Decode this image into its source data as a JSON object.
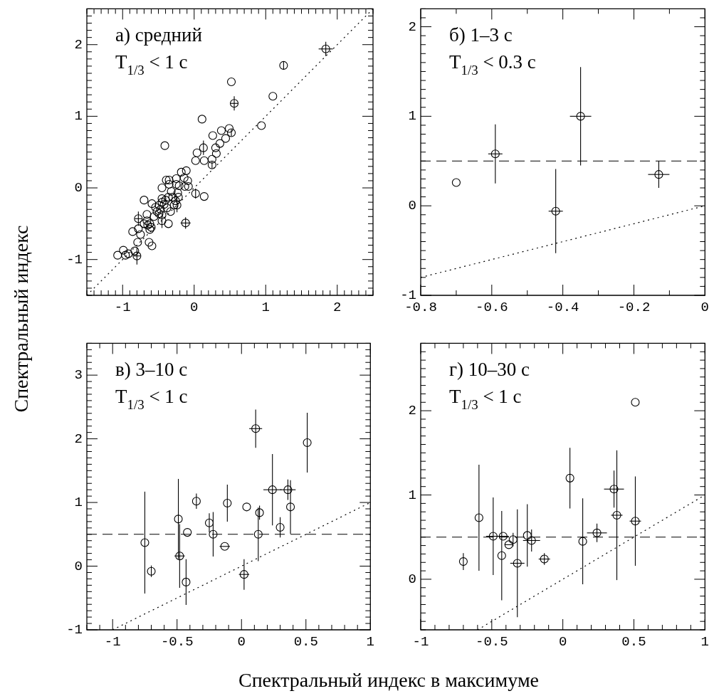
{
  "chart_data": [
    {
      "type": "scatter",
      "ylabel": "Спектральный индекс",
      "annotations": [
        "а) средний",
        "T$_{1/3}$ < 1 с"
      ],
      "xlim": [
        -1.5,
        2.5
      ],
      "ylim": [
        -1.5,
        2.5
      ],
      "marker": "circle",
      "xticks": [
        {
          "value": -1.5,
          "label": null
        },
        {
          "value": -1.4,
          "label": null
        },
        {
          "value": -1.3,
          "label": null
        },
        {
          "value": -1.2,
          "label": null
        },
        {
          "value": -1.1,
          "label": null
        },
        -1,
        {
          "value": -0.9,
          "label": null
        },
        {
          "value": -0.8,
          "label": null
        },
        {
          "value": -0.7,
          "label": null
        },
        {
          "value": -0.6,
          "label": null
        },
        {
          "value": -0.5,
          "label": null
        },
        {
          "value": -0.4,
          "label": null
        },
        {
          "value": -0.3,
          "label": null
        },
        {
          "value": -0.2,
          "label": null
        },
        {
          "value": -0.1,
          "label": null
        },
        0,
        {
          "value": 0.1,
          "label": null
        },
        {
          "value": 0.2,
          "label": null
        },
        {
          "value": 0.3,
          "label": null
        },
        {
          "value": 0.4,
          "label": null
        },
        {
          "value": 0.5,
          "label": null
        },
        {
          "value": 0.6,
          "label": null
        },
        {
          "value": 0.7,
          "label": null
        },
        {
          "value": 0.8,
          "label": null
        },
        {
          "value": 0.9,
          "label": null
        },
        1,
        {
          "value": 1.1,
          "label": null
        },
        {
          "value": 1.2,
          "label": null
        },
        {
          "value": 1.3,
          "label": null
        },
        {
          "value": 1.4,
          "label": null
        },
        {
          "value": 1.5,
          "label": null
        },
        {
          "value": 1.6,
          "label": null
        },
        {
          "value": 1.7,
          "label": null
        },
        {
          "value": 1.8,
          "label": null
        },
        {
          "value": 1.9,
          "label": null
        },
        2,
        {
          "value": 2.1,
          "label": null
        },
        {
          "value": 2.2,
          "label": null
        },
        {
          "value": 2.3,
          "label": null
        },
        {
          "value": 2.4,
          "label": null
        },
        {
          "value": 2.5,
          "label": null
        }
      ],
      "yticks": [
        {
          "value": -1.5,
          "label": null
        },
        {
          "value": -1.4,
          "label": null
        },
        {
          "value": -1.3,
          "label": null
        },
        {
          "value": -1.2,
          "label": null
        },
        {
          "value": -1.1,
          "label": null
        },
        -1,
        {
          "value": -0.9,
          "label": null
        },
        {
          "value": -0.8,
          "label": null
        },
        {
          "value": -0.7,
          "label": null
        },
        {
          "value": -0.6,
          "label": null
        },
        {
          "value": -0.5,
          "label": null
        },
        {
          "value": -0.4,
          "label": null
        },
        {
          "value": -0.3,
          "label": null
        },
        {
          "value": -0.2,
          "label": null
        },
        {
          "value": -0.1,
          "label": null
        },
        0,
        {
          "value": 0.1,
          "label": null
        },
        {
          "value": 0.2,
          "label": null
        },
        {
          "value": 0.3,
          "label": null
        },
        {
          "value": 0.4,
          "label": null
        },
        {
          "value": 0.5,
          "label": null
        },
        {
          "value": 0.6,
          "label": null
        },
        {
          "value": 0.7,
          "label": null
        },
        {
          "value": 0.8,
          "label": null
        },
        {
          "value": 0.9,
          "label": null
        },
        1,
        {
          "value": 1.1,
          "label": null
        },
        {
          "value": 1.2,
          "label": null
        },
        {
          "value": 1.3,
          "label": null
        },
        {
          "value": 1.4,
          "label": null
        },
        {
          "value": 1.5,
          "label": null
        },
        {
          "value": 1.6,
          "label": null
        },
        {
          "value": 1.7,
          "label": null
        },
        {
          "value": 1.8,
          "label": null
        },
        {
          "value": 1.9,
          "label": null
        },
        2,
        {
          "value": 2.1,
          "label": null
        },
        {
          "value": 2.2,
          "label": null
        },
        {
          "value": 2.3,
          "label": null
        },
        {
          "value": 2.4,
          "label": null
        },
        {
          "value": 2.5,
          "label": null
        }
      ],
      "series": [
        {
          "type": "scatter",
          "color": "#000000",
          "x": [
            1.84,
            1.25,
            0.52,
            1.1,
            0.56,
            0.11,
            0.94,
            -0.41,
            0.49,
            0.52,
            0.38,
            0.26,
            0.44,
            0.36,
            0.3,
            0.13,
            0.04,
            0.31,
            0.02,
            0.14,
            0.25,
            0.25,
            0.02,
            0.14,
            -0.12,
            -0.36,
            -0.7,
            -0.11,
            -0.18,
            -0.14,
            -0.09,
            -0.08,
            -0.13,
            -0.25,
            -0.35,
            -0.39,
            -0.35,
            -0.25,
            -0.21,
            -0.45,
            -0.32,
            -0.23,
            -0.22,
            -0.26,
            -0.24,
            -0.36,
            -0.4,
            -0.45,
            -0.42,
            -0.49,
            -0.47,
            -0.52,
            -0.59,
            -0.56,
            -0.45,
            -0.45,
            -0.66,
            -0.66,
            -0.62,
            -0.6,
            -0.62,
            -0.65,
            -0.7,
            -0.78,
            -0.78,
            -0.86,
            -0.75,
            -0.79,
            -0.63,
            -0.59,
            -0.83,
            -0.8,
            -0.92,
            -0.99,
            -0.96,
            -1.07,
            -0.49,
            -0.54,
            -0.45,
            -0.3,
            -0.28,
            -0.38,
            -0.33
          ],
          "values": [
            1.94,
            1.71,
            1.48,
            1.28,
            1.18,
            0.96,
            0.87,
            0.59,
            0.83,
            0.77,
            0.8,
            0.73,
            0.69,
            0.62,
            0.56,
            0.56,
            0.49,
            0.48,
            0.38,
            0.38,
            0.4,
            0.32,
            -0.08,
            -0.12,
            -0.49,
            -0.5,
            -0.17,
            0.24,
            0.22,
            0.14,
            0.1,
            0.02,
            0.02,
            0.13,
            0.11,
            0.11,
            0.05,
            0.05,
            0.03,
            0.0,
            -0.05,
            -0.07,
            -0.13,
            -0.18,
            -0.24,
            -0.13,
            -0.17,
            -0.15,
            -0.23,
            -0.24,
            -0.3,
            -0.33,
            -0.22,
            -0.4,
            -0.38,
            -0.46,
            -0.37,
            -0.46,
            -0.5,
            -0.55,
            -0.58,
            -0.52,
            -0.5,
            -0.43,
            -0.57,
            -0.61,
            -0.65,
            -0.76,
            -0.76,
            -0.81,
            -0.88,
            -0.95,
            -0.92,
            -0.87,
            -0.94,
            -0.94,
            -0.36,
            -0.27,
            -0.2,
            -0.13,
            -0.24,
            -0.28,
            -0.33
          ],
          "errors": [
            0.1,
            0.06,
            null,
            null,
            0.1,
            null,
            null,
            null,
            null,
            0.05,
            null,
            null,
            null,
            null,
            null,
            0.1,
            null,
            null,
            null,
            null,
            null,
            0.05,
            0.07,
            null,
            0.08,
            null,
            null,
            null,
            null,
            null,
            null,
            null,
            null,
            null,
            null,
            null,
            null,
            null,
            null,
            null,
            null,
            null,
            null,
            null,
            0.1,
            null,
            null,
            null,
            null,
            null,
            null,
            null,
            null,
            null,
            null,
            0.1,
            null,
            null,
            null,
            null,
            null,
            null,
            null,
            0.1,
            null,
            null,
            null,
            null,
            null,
            null,
            null,
            0.12,
            null,
            null,
            null,
            null,
            null,
            null,
            null,
            null,
            null,
            null,
            null
          ],
          "xerrors": [
            0.1,
            null,
            null,
            null,
            0.06,
            null,
            null,
            null,
            null,
            null,
            null,
            null,
            null,
            null,
            null,
            null,
            null,
            null,
            null,
            null,
            null,
            null,
            null,
            null,
            0.07,
            null,
            null,
            null,
            null,
            null,
            null,
            null,
            null,
            null,
            null,
            null,
            null,
            null,
            null,
            null,
            null,
            null,
            null,
            null,
            null,
            null,
            null,
            null,
            null,
            null,
            null,
            null,
            null,
            null,
            null,
            null,
            null,
            null,
            null,
            null,
            null,
            null,
            null,
            0.05,
            null,
            null,
            null,
            null,
            null,
            null,
            null,
            0.05,
            null,
            null,
            null,
            null,
            null,
            null,
            null,
            null,
            null,
            null,
            null
          ]
        },
        {
          "type": "line",
          "color": "#000000",
          "line_style": "dotted",
          "marker": "none",
          "x": [
            -1.5,
            2.5
          ],
          "values": [
            -1.5,
            2.5
          ]
        }
      ]
    },
    {
      "type": "scatter",
      "annotations": [
        "б) 1–3 с",
        "T$_{1/3}$ < 0.3 с"
      ],
      "xlim": [
        -0.8,
        0
      ],
      "ylim": [
        -1,
        2.2
      ],
      "marker": "circle",
      "xticks": [
        -0.8,
        {
          "value": -0.7,
          "label": null
        },
        -0.6,
        {
          "value": -0.5,
          "label": null
        },
        -0.4,
        {
          "value": -0.3,
          "label": null
        },
        -0.2,
        {
          "value": -0.1,
          "label": null
        },
        0
      ],
      "yticks": [
        -1,
        {
          "value": -0.9,
          "label": null
        },
        {
          "value": -0.8,
          "label": null
        },
        {
          "value": -0.7,
          "label": null
        },
        {
          "value": -0.6,
          "label": null
        },
        {
          "value": -0.5,
          "label": null
        },
        {
          "value": -0.4,
          "label": null
        },
        {
          "value": -0.3,
          "label": null
        },
        {
          "value": -0.2,
          "label": null
        },
        {
          "value": -0.1,
          "label": null
        },
        0,
        {
          "value": 0.1,
          "label": null
        },
        {
          "value": 0.2,
          "label": null
        },
        {
          "value": 0.3,
          "label": null
        },
        {
          "value": 0.4,
          "label": null
        },
        {
          "value": 0.5,
          "label": null
        },
        {
          "value": 0.6,
          "label": null
        },
        {
          "value": 0.7,
          "label": null
        },
        {
          "value": 0.8,
          "label": null
        },
        {
          "value": 0.9,
          "label": null
        },
        1,
        {
          "value": 1.1,
          "label": null
        },
        {
          "value": 1.2,
          "label": null
        },
        {
          "value": 1.3,
          "label": null
        },
        {
          "value": 1.4,
          "label": null
        },
        {
          "value": 1.5,
          "label": null
        },
        {
          "value": 1.6,
          "label": null
        },
        {
          "value": 1.7,
          "label": null
        },
        {
          "value": 1.8,
          "label": null
        },
        {
          "value": 1.9,
          "label": null
        },
        2,
        {
          "value": 2.1,
          "label": null
        },
        {
          "value": 2.2,
          "label": null
        }
      ],
      "ref_lines": [
        {
          "axis": "y",
          "value": 0.5,
          "line_style": "dashed",
          "color": "#000000"
        }
      ],
      "series": [
        {
          "type": "scatter",
          "color": "#000000",
          "x": [
            -0.7,
            -0.59,
            -0.42,
            -0.35,
            -0.13
          ],
          "values": [
            0.26,
            0.58,
            -0.06,
            1.0,
            0.35
          ],
          "errors": [
            null,
            0.33,
            0.47,
            0.55,
            0.15
          ],
          "xerrors": [
            null,
            0.02,
            0.02,
            0.03,
            0.03
          ]
        },
        {
          "type": "line",
          "color": "#000000",
          "line_style": "dotted",
          "marker": "none",
          "x": [
            -0.8,
            0
          ],
          "values": [
            -0.8,
            0
          ]
        }
      ]
    },
    {
      "type": "scatter",
      "xlabel": "Спектральный индекс в максимуме",
      "annotations": [
        "в) 3–10 с",
        "T$_{1/3}$ < 1 с"
      ],
      "xlim": [
        -1.2,
        1
      ],
      "ylim": [
        -1,
        3.5
      ],
      "marker": "circle",
      "xticks": [
        {
          "value": -1.2,
          "label": null
        },
        {
          "value": -1.1,
          "label": null
        },
        -1,
        {
          "value": -0.9,
          "label": null
        },
        {
          "value": -0.8,
          "label": null
        },
        {
          "value": -0.7,
          "label": null
        },
        {
          "value": -0.6,
          "label": null
        },
        -0.5,
        {
          "value": -0.4,
          "label": null
        },
        {
          "value": -0.3,
          "label": null
        },
        {
          "value": -0.2,
          "label": null
        },
        {
          "value": -0.1,
          "label": null
        },
        0,
        {
          "value": 0.1,
          "label": null
        },
        {
          "value": 0.2,
          "label": null
        },
        {
          "value": 0.3,
          "label": null
        },
        {
          "value": 0.4,
          "label": null
        },
        0.5,
        {
          "value": 0.6,
          "label": null
        },
        {
          "value": 0.7,
          "label": null
        },
        {
          "value": 0.8,
          "label": null
        },
        {
          "value": 0.9,
          "label": null
        },
        1
      ],
      "yticks": [
        -1,
        {
          "value": -0.9,
          "label": null
        },
        {
          "value": -0.8,
          "label": null
        },
        {
          "value": -0.7,
          "label": null
        },
        {
          "value": -0.6,
          "label": null
        },
        {
          "value": -0.5,
          "label": null
        },
        {
          "value": -0.4,
          "label": null
        },
        {
          "value": -0.3,
          "label": null
        },
        {
          "value": -0.2,
          "label": null
        },
        {
          "value": -0.1,
          "label": null
        },
        0,
        {
          "value": 0.1,
          "label": null
        },
        {
          "value": 0.2,
          "label": null
        },
        {
          "value": 0.3,
          "label": null
        },
        {
          "value": 0.4,
          "label": null
        },
        {
          "value": 0.5,
          "label": null
        },
        {
          "value": 0.6,
          "label": null
        },
        {
          "value": 0.7,
          "label": null
        },
        {
          "value": 0.8,
          "label": null
        },
        {
          "value": 0.9,
          "label": null
        },
        1,
        {
          "value": 1.1,
          "label": null
        },
        {
          "value": 1.2,
          "label": null
        },
        {
          "value": 1.3,
          "label": null
        },
        {
          "value": 1.4,
          "label": null
        },
        {
          "value": 1.5,
          "label": null
        },
        {
          "value": 1.6,
          "label": null
        },
        {
          "value": 1.7,
          "label": null
        },
        {
          "value": 1.8,
          "label": null
        },
        {
          "value": 1.9,
          "label": null
        },
        2,
        {
          "value": 2.1,
          "label": null
        },
        {
          "value": 2.2,
          "label": null
        },
        {
          "value": 2.3,
          "label": null
        },
        {
          "value": 2.4,
          "label": null
        },
        {
          "value": 2.5,
          "label": null
        },
        {
          "value": 2.6,
          "label": null
        },
        {
          "value": 2.7,
          "label": null
        },
        {
          "value": 2.8,
          "label": null
        },
        {
          "value": 2.9,
          "label": null
        },
        3,
        {
          "value": 3.1,
          "label": null
        },
        {
          "value": 3.2,
          "label": null
        },
        {
          "value": 3.3,
          "label": null
        },
        {
          "value": 3.4,
          "label": null
        },
        {
          "value": 3.5,
          "label": null
        }
      ],
      "ref_lines": [
        {
          "axis": "y",
          "value": 0.5,
          "line_style": "dashed",
          "color": "#000000"
        }
      ],
      "series": [
        {
          "type": "scatter",
          "color": "#000000",
          "x": [
            -0.75,
            -0.7,
            -0.49,
            -0.48,
            -0.43,
            -0.42,
            -0.35,
            -0.25,
            -0.22,
            -0.13,
            -0.11,
            0.02,
            0.04,
            0.13,
            0.14,
            0.11,
            0.24,
            0.3,
            0.36,
            0.38,
            0.51
          ],
          "values": [
            0.37,
            -0.08,
            0.74,
            0.16,
            -0.25,
            0.53,
            1.02,
            0.68,
            0.5,
            0.31,
            0.99,
            -0.13,
            0.93,
            0.5,
            0.84,
            2.16,
            1.2,
            0.61,
            1.2,
            0.93,
            1.94
          ],
          "errors": [
            0.8,
            0.09,
            0.63,
            0.5,
            0.36,
            null,
            0.12,
            0.15,
            0.35,
            null,
            0.29,
            0.24,
            null,
            0.42,
            0.11,
            0.3,
            0.56,
            0.16,
            0.16,
            0.42,
            0.47
          ],
          "xerrors": [
            null,
            null,
            null,
            0.04,
            null,
            null,
            null,
            null,
            null,
            0.04,
            null,
            0.04,
            null,
            null,
            null,
            0.05,
            0.07,
            null,
            0.06,
            null,
            null
          ]
        },
        {
          "type": "line",
          "color": "#000000",
          "line_style": "dotted",
          "marker": "none",
          "x": [
            -1,
            1
          ],
          "values": [
            -1,
            1
          ]
        }
      ]
    },
    {
      "type": "scatter",
      "annotations": [
        "г) 10–30 с",
        "T$_{1/3}$ < 1 с"
      ],
      "xlim": [
        -1,
        1
      ],
      "ylim": [
        -0.6,
        2.8
      ],
      "marker": "circle",
      "xticks": [
        -1,
        {
          "value": -0.9,
          "label": null
        },
        {
          "value": -0.8,
          "label": null
        },
        {
          "value": -0.7,
          "label": null
        },
        {
          "value": -0.6,
          "label": null
        },
        -0.5,
        {
          "value": -0.4,
          "label": null
        },
        {
          "value": -0.3,
          "label": null
        },
        {
          "value": -0.2,
          "label": null
        },
        {
          "value": -0.1,
          "label": null
        },
        0,
        {
          "value": 0.1,
          "label": null
        },
        {
          "value": 0.2,
          "label": null
        },
        {
          "value": 0.3,
          "label": null
        },
        {
          "value": 0.4,
          "label": null
        },
        0.5,
        {
          "value": 0.6,
          "label": null
        },
        {
          "value": 0.7,
          "label": null
        },
        {
          "value": 0.8,
          "label": null
        },
        {
          "value": 0.9,
          "label": null
        },
        1
      ],
      "yticks": [
        {
          "value": -0.6,
          "label": null
        },
        {
          "value": -0.5,
          "label": null
        },
        {
          "value": -0.4,
          "label": null
        },
        {
          "value": -0.3,
          "label": null
        },
        {
          "value": -0.2,
          "label": null
        },
        {
          "value": -0.1,
          "label": null
        },
        0,
        {
          "value": 0.1,
          "label": null
        },
        {
          "value": 0.2,
          "label": null
        },
        {
          "value": 0.3,
          "label": null
        },
        {
          "value": 0.4,
          "label": null
        },
        {
          "value": 0.5,
          "label": null
        },
        {
          "value": 0.6,
          "label": null
        },
        {
          "value": 0.7,
          "label": null
        },
        {
          "value": 0.8,
          "label": null
        },
        {
          "value": 0.9,
          "label": null
        },
        1,
        {
          "value": 1.1,
          "label": null
        },
        {
          "value": 1.2,
          "label": null
        },
        {
          "value": 1.3,
          "label": null
        },
        {
          "value": 1.4,
          "label": null
        },
        {
          "value": 1.5,
          "label": null
        },
        {
          "value": 1.6,
          "label": null
        },
        {
          "value": 1.7,
          "label": null
        },
        {
          "value": 1.8,
          "label": null
        },
        {
          "value": 1.9,
          "label": null
        },
        2,
        {
          "value": 2.1,
          "label": null
        },
        {
          "value": 2.2,
          "label": null
        },
        {
          "value": 2.3,
          "label": null
        },
        {
          "value": 2.4,
          "label": null
        },
        {
          "value": 2.5,
          "label": null
        },
        {
          "value": 2.6,
          "label": null
        },
        {
          "value": 2.7,
          "label": null
        },
        {
          "value": 2.8,
          "label": null
        }
      ],
      "ref_lines": [
        {
          "axis": "y",
          "value": 0.5,
          "line_style": "dashed",
          "color": "#000000"
        }
      ],
      "series": [
        {
          "type": "scatter",
          "color": "#000000",
          "x": [
            -0.7,
            -0.59,
            -0.49,
            -0.42,
            -0.43,
            -0.38,
            -0.35,
            -0.32,
            -0.25,
            -0.22,
            -0.13,
            0.05,
            0.14,
            0.24,
            0.36,
            0.38,
            0.51,
            0.51
          ],
          "values": [
            0.21,
            0.73,
            0.51,
            0.51,
            0.28,
            0.41,
            0.47,
            0.19,
            0.52,
            0.46,
            0.24,
            1.2,
            0.45,
            0.55,
            1.07,
            0.76,
            0.69,
            2.1
          ],
          "errors": [
            0.1,
            0.63,
            0.46,
            null,
            0.53,
            null,
            0.08,
            0.64,
            0.37,
            0.13,
            0.07,
            0.36,
            0.51,
            0.11,
            0.22,
            0.77,
            0.53,
            null
          ],
          "xerrors": [
            null,
            null,
            0.05,
            0.04,
            null,
            0.03,
            null,
            0.05,
            null,
            0.06,
            0.04,
            null,
            null,
            0.07,
            0.07,
            0.04,
            0.04,
            null
          ]
        },
        {
          "type": "line",
          "color": "#000000",
          "line_style": "dotted",
          "marker": "none",
          "x": [
            -0.6,
            1
          ],
          "values": [
            -0.6,
            1
          ]
        }
      ]
    }
  ]
}
